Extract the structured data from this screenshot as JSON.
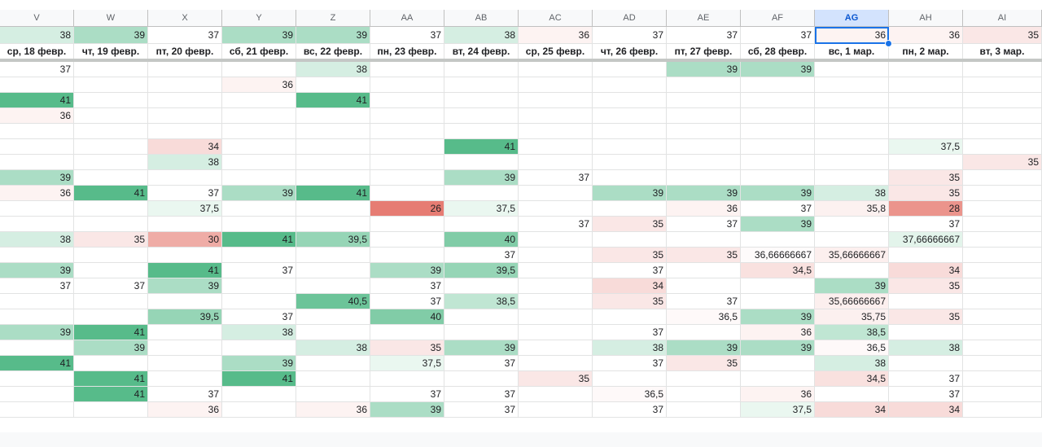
{
  "columns": [
    "V",
    "W",
    "X",
    "Y",
    "Z",
    "AA",
    "AB",
    "AC",
    "AD",
    "AE",
    "AF",
    "AG",
    "AH",
    "AI"
  ],
  "selected_column": "AG",
  "summary": [
    "38",
    "39",
    "37",
    "39",
    "39",
    "37",
    "38",
    "36",
    "37",
    "37",
    "37",
    "36",
    "36",
    "35"
  ],
  "dates": [
    "ср, 18 февр.",
    "чт, 19 февр.",
    "пт, 20 февр.",
    "сб, 21 февр.",
    "вс, 22 февр.",
    "пн, 23 февр.",
    "вт, 24 февр.",
    "ср, 25 февр.",
    "чт, 26 февр.",
    "пт, 27 февр.",
    "сб, 28 февр.",
    "вс, 1 мар.",
    "пн, 2 мар.",
    "вт, 3 мар."
  ],
  "rows": [
    [
      "37",
      "",
      "",
      "",
      "38",
      "",
      "",
      "",
      "",
      "39",
      "39",
      "",
      "",
      ""
    ],
    [
      "",
      "",
      "",
      "36",
      "",
      "",
      "",
      "",
      "",
      "",
      "",
      "",
      "",
      ""
    ],
    [
      "41",
      "",
      "",
      "",
      "41",
      "",
      "",
      "",
      "",
      "",
      "",
      "",
      "",
      ""
    ],
    [
      "36",
      "",
      "",
      "",
      "",
      "",
      "",
      "",
      "",
      "",
      "",
      "",
      "",
      ""
    ],
    [
      "",
      "",
      "",
      "",
      "",
      "",
      "",
      "",
      "",
      "",
      "",
      "",
      "",
      ""
    ],
    [
      "",
      "",
      "34",
      "",
      "",
      "",
      "41",
      "",
      "",
      "",
      "",
      "",
      "37,5",
      ""
    ],
    [
      "",
      "",
      "38",
      "",
      "",
      "",
      "",
      "",
      "",
      "",
      "",
      "",
      "",
      "35"
    ],
    [
      "39",
      "",
      "",
      "",
      "",
      "",
      "39",
      "37",
      "",
      "",
      "",
      "",
      "35",
      ""
    ],
    [
      "36",
      "41",
      "37",
      "39",
      "41",
      "",
      "",
      "",
      "39",
      "39",
      "39",
      "38",
      "35",
      ""
    ],
    [
      "",
      "",
      "37,5",
      "",
      "",
      "26",
      "37,5",
      "",
      "",
      "36",
      "37",
      "35,8",
      "28",
      ""
    ],
    [
      "",
      "",
      "",
      "",
      "",
      "",
      "",
      "37",
      "35",
      "37",
      "39",
      "",
      "37",
      ""
    ],
    [
      "38",
      "35",
      "30",
      "41",
      "39,5",
      "",
      "40",
      "",
      "",
      "",
      "",
      "",
      "37,66666667",
      ""
    ],
    [
      "",
      "",
      "",
      "",
      "",
      "",
      "37",
      "",
      "35",
      "35",
      "36,66666667",
      "35,66666667",
      "",
      ""
    ],
    [
      "39",
      "",
      "41",
      "37",
      "",
      "39",
      "39,5",
      "",
      "37",
      "",
      "34,5",
      "",
      "34",
      ""
    ],
    [
      "37",
      "37",
      "39",
      "",
      "",
      "37",
      "",
      "",
      "34",
      "",
      "",
      "39",
      "35",
      ""
    ],
    [
      "",
      "",
      "",
      "",
      "40,5",
      "37",
      "38,5",
      "",
      "35",
      "37",
      "",
      "35,66666667",
      "",
      ""
    ],
    [
      "",
      "",
      "39,5",
      "37",
      "",
      "40",
      "",
      "",
      "",
      "36,5",
      "39",
      "35,75",
      "35",
      ""
    ],
    [
      "39",
      "41",
      "",
      "38",
      "",
      "",
      "",
      "",
      "37",
      "",
      "36",
      "38,5",
      "",
      ""
    ],
    [
      "",
      "39",
      "",
      "",
      "38",
      "35",
      "39",
      "",
      "38",
      "39",
      "39",
      "36,5",
      "38",
      ""
    ],
    [
      "41",
      "",
      "",
      "39",
      "",
      "37,5",
      "37",
      "",
      "37",
      "35",
      "",
      "38",
      "",
      ""
    ],
    [
      "",
      "41",
      "",
      "41",
      "",
      "",
      "",
      "35",
      "",
      "",
      "",
      "34,5",
      "37",
      ""
    ],
    [
      "",
      "41",
      "37",
      "",
      "",
      "37",
      "37",
      "",
      "36,5",
      "",
      "36",
      "",
      "37",
      ""
    ],
    [
      "",
      "",
      "36",
      "",
      "36",
      "39",
      "37",
      "",
      "37",
      "",
      "37,5",
      "34",
      "34",
      ""
    ]
  ],
  "colors": {
    "scale_low": "#e67c73",
    "scale_mid": "#ffffff",
    "scale_high": "#57bb8a",
    "selection": "#1a73e8",
    "header_selected": "#d3e3fd"
  }
}
